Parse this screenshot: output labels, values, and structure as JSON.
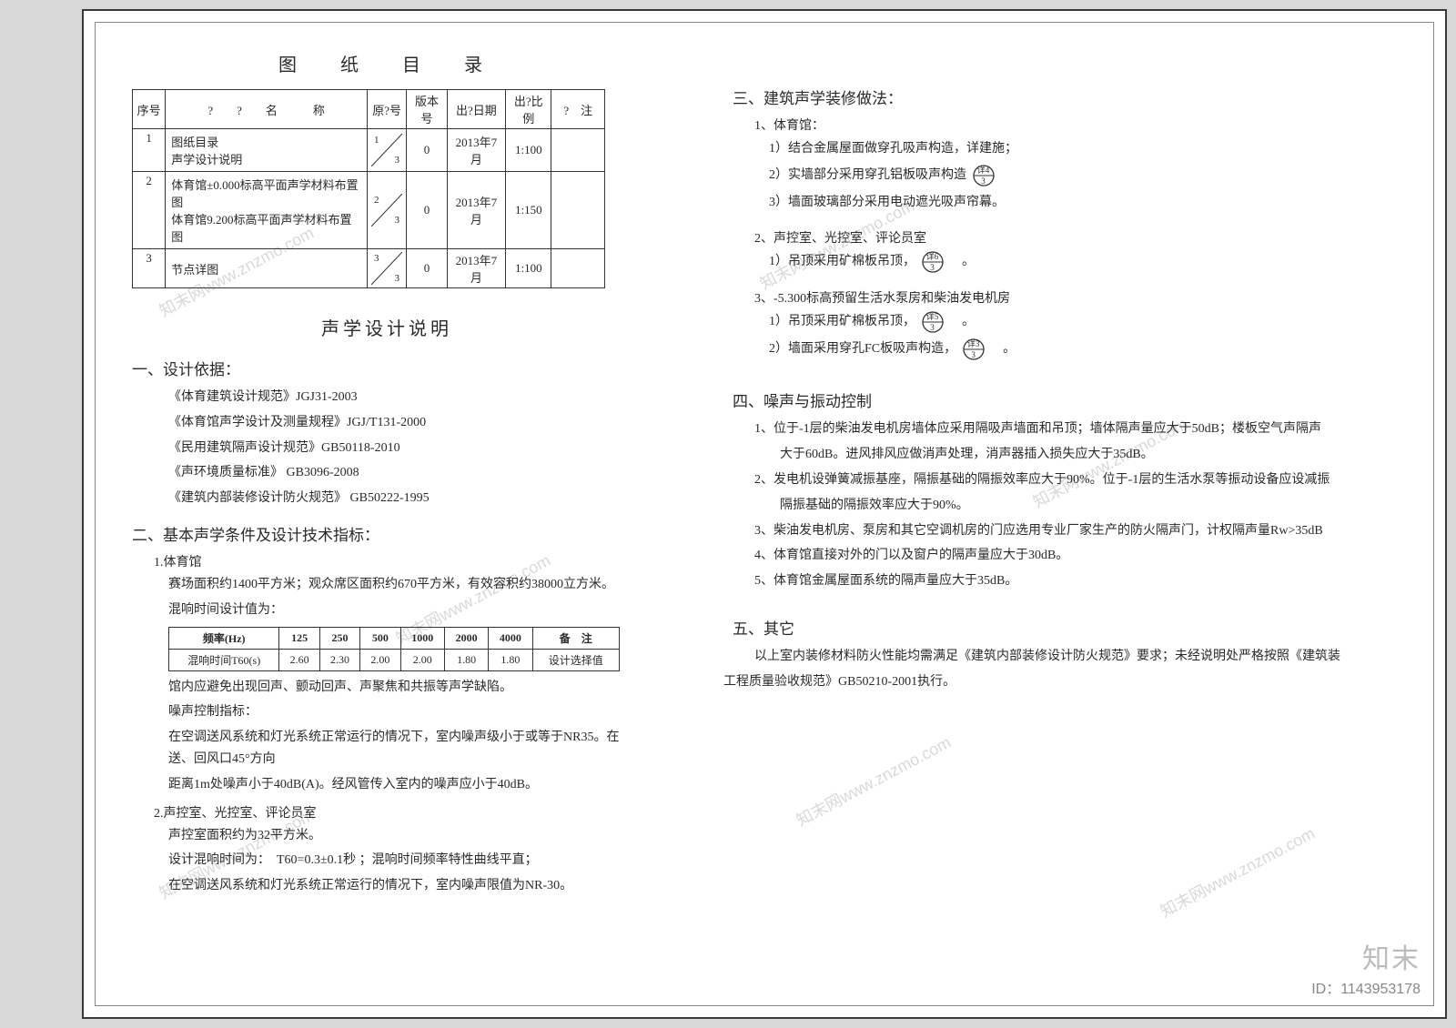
{
  "toc": {
    "title": "图　纸　目　录",
    "headers": [
      "序号",
      "?　　?　　名　　　称",
      "原?号",
      "版本号",
      "出?日期",
      "出?比例",
      "?　注"
    ],
    "rows": [
      {
        "num": "1",
        "names": [
          "图纸目录",
          "声学设计说明"
        ],
        "diag_top": "1",
        "diag_bot": "3",
        "ver": "0",
        "date": "2013年7月",
        "scale": "1:100",
        "note": ""
      },
      {
        "num": "2",
        "names": [
          "体育馆±0.000标高平面声学材料布置图",
          "体育馆9.200标高平面声学材料布置图"
        ],
        "diag_top": "2",
        "diag_bot": "3",
        "ver": "0",
        "date": "2013年7月",
        "scale": "1:150",
        "note": ""
      },
      {
        "num": "3",
        "names": [
          "节点详图"
        ],
        "diag_top": "3",
        "diag_bot": "3",
        "ver": "0",
        "date": "2013年7月",
        "scale": "1:100",
        "note": ""
      }
    ]
  },
  "acoustic_title": "声学设计说明",
  "s1": {
    "h": "一、设计依据：",
    "refs": [
      "《体育建筑设计规范》JGJ31-2003",
      "《体育馆声学设计及测量规程》JGJ/T131-2000",
      "《民用建筑隔声设计规范》GB50118-2010",
      "《声环境质量标准》 GB3096-2008",
      "《建筑内部装修设计防火规范》 GB50222-1995"
    ]
  },
  "s2": {
    "h": "二、基本声学条件及设计技术指标：",
    "gym": {
      "h": "1.体育馆",
      "desc": "赛场面积约1400平方米；观众席区面积约670平方米，有效容积约38000立方米。",
      "label": "混响时间设计值为：",
      "tbl": {
        "head": [
          "频率(Hz)",
          "125",
          "250",
          "500",
          "1000",
          "2000",
          "4000",
          "备　注"
        ],
        "row": [
          "混响时间T60(s)",
          "2.60",
          "2.30",
          "2.00",
          "2.00",
          "1.80",
          "1.80",
          "设计选择值"
        ]
      },
      "p1": "馆内应避免出现回声、颤动回声、声聚焦和共振等声学缺陷。",
      "p2h": "噪声控制指标：",
      "p2a": "在空调送风系统和灯光系统正常运行的情况下，室内噪声级小于或等于NR35。在送、回风口45°方向",
      "p2b": "距离1m处噪声小于40dB(A)。经风管传入室内的噪声应小于40dB。"
    },
    "ctrl": {
      "h": "2.声控室、光控室、评论员室",
      "l1": "声控室面积约为32平方米。",
      "l2": "设计混响时间为：　T60=0.3±0.1秒 ；混响时间频率特性曲线平直；",
      "l3": "在空调送风系统和灯光系统正常运行的情况下，室内噪声限值为NR-30。"
    }
  },
  "s3": {
    "h": "三、建筑声学装修做法：",
    "g1": {
      "h": "1、体育馆：",
      "i1": "1）结合金属屋面做穿孔吸声构造，详建施；",
      "i2a": "2）实墙部分采用穿孔铝板吸声构造",
      "i2ref": {
        "t": "详4",
        "b": "3"
      },
      "i3": "3）墙面玻璃部分采用电动遮光吸声帘幕。"
    },
    "g2": {
      "h": "2、声控室、光控室、评论员室",
      "i1a": "1）吊顶采用矿棉板吊顶，",
      "i1ref": {
        "t": "详6",
        "b": "3"
      },
      "suffix": "　。"
    },
    "g3": {
      "h": "3、-5.300标高预留生活水泵房和柴油发电机房",
      "i1a": "1）吊顶采用矿棉板吊顶，",
      "i1ref": {
        "t": "详5",
        "b": "3"
      },
      "i2a": "2）墙面采用穿孔FC板吸声构造，",
      "i2ref": {
        "t": "详3",
        "b": "3"
      },
      "suffix": "　。"
    }
  },
  "s4": {
    "h": "四、噪声与振动控制",
    "items": [
      "1、位于-1层的柴油发电机房墙体应采用隔吸声墙面和吊顶；墙体隔声量应大于50dB；楼板空气声隔声",
      "　　大于60dB。进风排风应做消声处理，消声器插入损失应大于35dB。",
      "2、发电机设弹簧减振基座，隔振基础的隔振效率应大于90%。位于-1层的生活水泵等振动设备应设减振",
      "　　隔振基础的隔振效率应大于90%。",
      "3、柴油发电机房、泵房和其它空调机房的门应选用专业厂家生产的防火隔声门，计权隔声量Rw>35dB",
      "4、体育馆直接对外的门以及窗户的隔声量应大于30dB。",
      "5、体育馆金属屋面系统的隔声量应大于35dB。"
    ]
  },
  "s5": {
    "h": "五、其它",
    "l1": "以上室内装修材料防火性能均需满足《建筑内部装修设计防火规范》要求；未经说明处严格按照《建筑装",
    "l2": "工程质量验收规范》GB50210-2001执行。"
  },
  "wm": {
    "name": "知末",
    "id": "ID：1143953178",
    "diag": "知末网www.znzmo.com"
  }
}
